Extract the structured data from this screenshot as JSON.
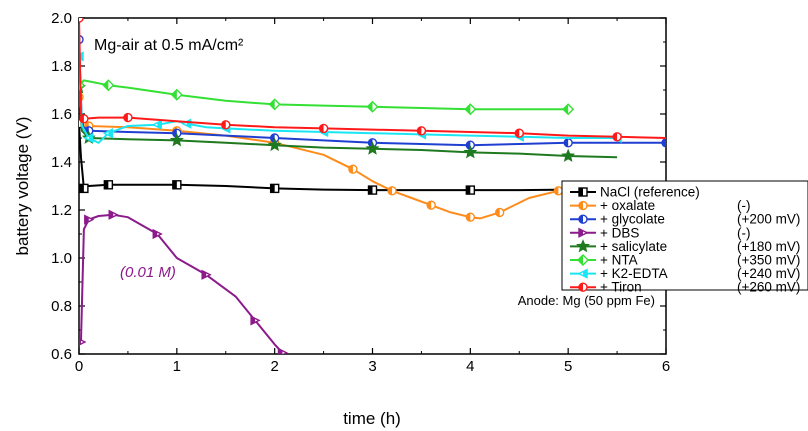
{
  "chart_data": {
    "type": "line",
    "title": "Mg-air at 0.5 mA/cm²",
    "xlabel": "time (h)",
    "ylabel": "battery voltage (V)",
    "xlim": [
      0,
      6
    ],
    "ylim": [
      0.6,
      2.0
    ],
    "x_ticks": [
      "0",
      "1",
      "2",
      "3",
      "4",
      "5",
      "6"
    ],
    "y_ticks": [
      "0.6",
      "0.8",
      "1.0",
      "1.2",
      "1.4",
      "1.6",
      "1.8",
      "2.0"
    ],
    "grid": false,
    "legend_position": "right",
    "annotations": {
      "dbs_concentration": "(0.01 M)",
      "anode": "Anode: Mg (50 ppm Fe)"
    },
    "series": [
      {
        "name": "NaCl (reference)",
        "note": "",
        "color": "#000000",
        "marker": "square",
        "x": [
          0,
          0.02,
          0.05,
          0.1,
          0.3,
          0.6,
          1.0,
          1.5,
          2.0,
          2.5,
          3.0,
          3.5,
          4.0,
          4.5,
          5.0
        ],
        "y": [
          1.56,
          1.42,
          1.29,
          1.3,
          1.305,
          1.305,
          1.305,
          1.3,
          1.29,
          1.285,
          1.283,
          1.283,
          1.283,
          1.283,
          1.285
        ]
      },
      {
        "name": "+ oxalate",
        "note": "(-)",
        "color": "#ff8c1a",
        "marker": "circle",
        "x": [
          0,
          0.03,
          0.1,
          0.5,
          1.0,
          1.5,
          2.0,
          2.5,
          2.8,
          3.0,
          3.2,
          3.4,
          3.6,
          3.8,
          4.0,
          4.1,
          4.3,
          4.6,
          4.9
        ],
        "y": [
          1.67,
          1.58,
          1.55,
          1.545,
          1.53,
          1.51,
          1.48,
          1.43,
          1.37,
          1.32,
          1.28,
          1.25,
          1.22,
          1.19,
          1.17,
          1.165,
          1.19,
          1.25,
          1.28
        ]
      },
      {
        "name": "+ glycolate",
        "note": "(+200 mV)",
        "color": "#1f3fd0",
        "marker": "circle",
        "x": [
          0,
          0.03,
          0.1,
          0.5,
          1.0,
          1.5,
          2.0,
          2.5,
          3.0,
          3.5,
          4.0,
          4.5,
          5.0,
          5.5,
          6.0
        ],
        "y": [
          1.91,
          1.55,
          1.53,
          1.525,
          1.52,
          1.51,
          1.5,
          1.49,
          1.48,
          1.475,
          1.47,
          1.475,
          1.48,
          1.48,
          1.48
        ]
      },
      {
        "name": "+ DBS",
        "note": "(-)",
        "color": "#8b1a8b",
        "marker": "triangle-right",
        "x": [
          0.02,
          0.05,
          0.1,
          0.2,
          0.35,
          0.5,
          0.8,
          1.0,
          1.3,
          1.6,
          1.8,
          2.0,
          2.08
        ],
        "y": [
          0.65,
          1.12,
          1.16,
          1.175,
          1.18,
          1.17,
          1.1,
          1.0,
          0.93,
          0.84,
          0.74,
          0.64,
          0.605
        ]
      },
      {
        "name": "+ salicylate",
        "note": "(+180 mV)",
        "color": "#1f7a1f",
        "marker": "star",
        "x": [
          0,
          0.03,
          0.1,
          0.5,
          1.0,
          1.5,
          2.0,
          2.5,
          3.0,
          3.5,
          4.0,
          4.5,
          5.0,
          5.5
        ],
        "y": [
          1.71,
          1.53,
          1.5,
          1.495,
          1.49,
          1.48,
          1.47,
          1.46,
          1.455,
          1.45,
          1.44,
          1.435,
          1.425,
          1.42
        ]
      },
      {
        "name": "+ NTA",
        "note": "(+350 mV)",
        "color": "#33e033",
        "marker": "diamond",
        "x": [
          0,
          0.05,
          0.3,
          0.5,
          1.0,
          1.5,
          2.0,
          2.5,
          3.0,
          3.5,
          4.0,
          4.5,
          5.0
        ],
        "y": [
          1.72,
          1.74,
          1.72,
          1.71,
          1.68,
          1.655,
          1.64,
          1.635,
          1.63,
          1.625,
          1.62,
          1.62,
          1.62
        ]
      },
      {
        "name": "+ K2-EDTA",
        "note": "(+240 mV)",
        "color": "#19e6f2",
        "marker": "triangle-left",
        "x": [
          0,
          0.03,
          0.1,
          0.2,
          0.3,
          0.5,
          0.8,
          1.0,
          1.1,
          1.3,
          1.5,
          2.0,
          2.5,
          3.0,
          3.5,
          4.0,
          4.5,
          5.0,
          5.5
        ],
        "y": [
          1.84,
          1.55,
          1.5,
          1.48,
          1.52,
          1.55,
          1.555,
          1.57,
          1.56,
          1.545,
          1.54,
          1.53,
          1.525,
          1.52,
          1.515,
          1.51,
          1.505,
          1.5,
          1.5
        ]
      },
      {
        "name": "+ Tiron",
        "note": "(+260 mV)",
        "color": "#ff1a1a",
        "marker": "circle",
        "x": [
          0,
          0.02,
          0.05,
          0.2,
          0.5,
          1.0,
          1.5,
          2.0,
          2.5,
          3.0,
          3.5,
          4.0,
          4.5,
          5.0,
          5.5,
          6.0
        ],
        "y": [
          2.0,
          1.6,
          1.58,
          1.585,
          1.585,
          1.57,
          1.555,
          1.545,
          1.54,
          1.535,
          1.53,
          1.525,
          1.52,
          1.51,
          1.505,
          1.5
        ]
      }
    ]
  }
}
